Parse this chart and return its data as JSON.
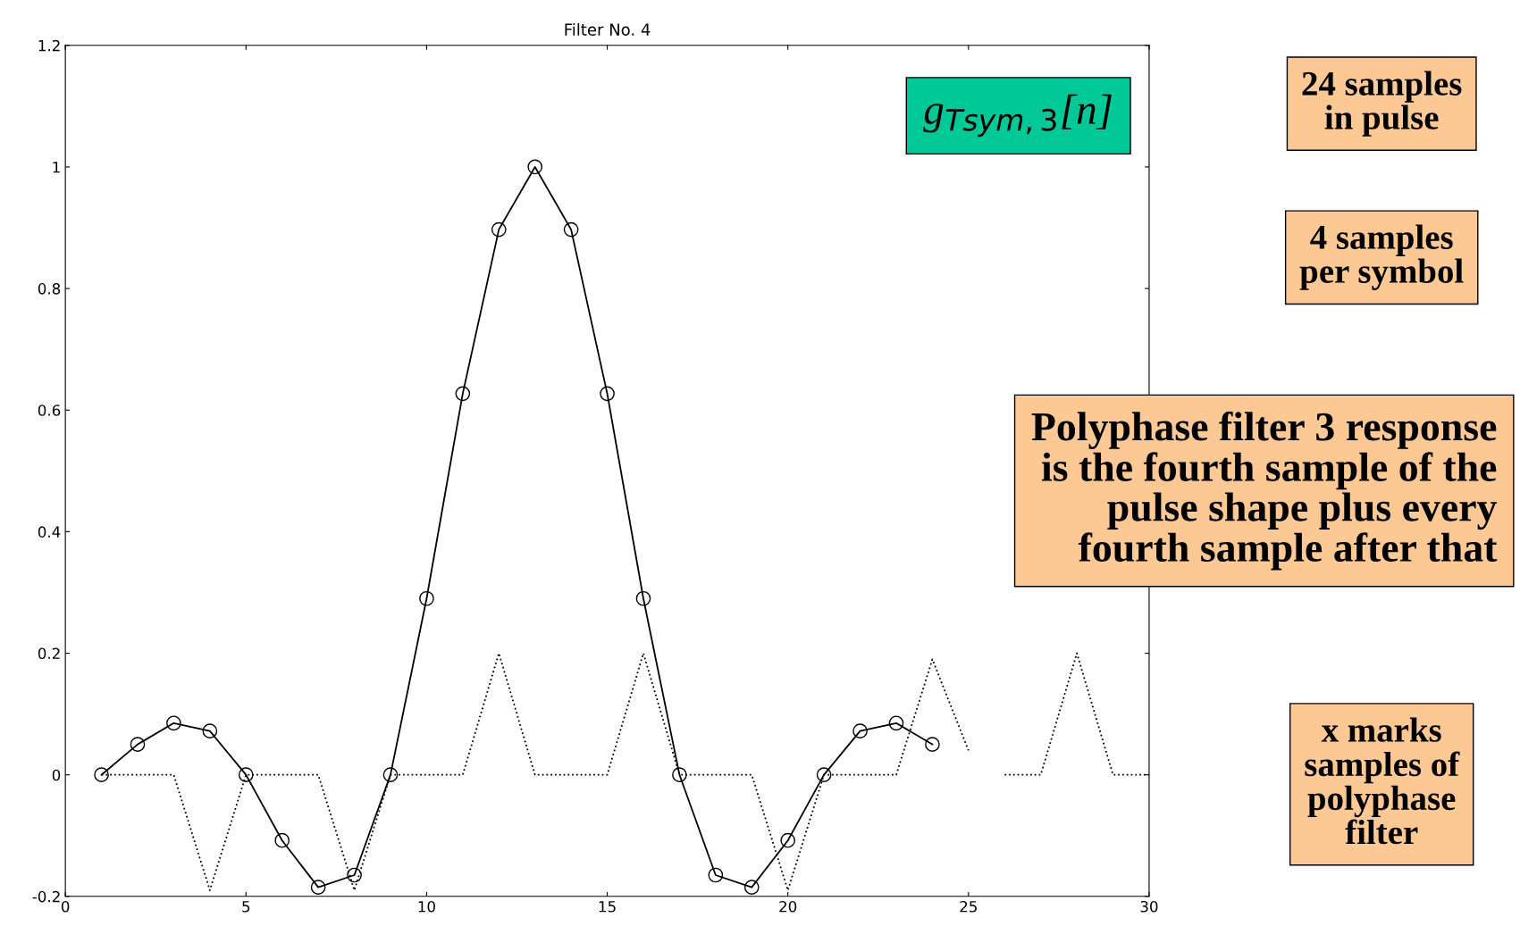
{
  "chart_data": {
    "type": "line",
    "title": "Filter No. 4",
    "xlim": [
      0,
      30
    ],
    "ylim": [
      -0.2,
      1.2
    ],
    "xticks": [
      0,
      5,
      10,
      15,
      20,
      25,
      30
    ],
    "yticks": [
      -0.2,
      0,
      0.2,
      0.4,
      0.6,
      0.8,
      1,
      1.2
    ],
    "grid": false,
    "legend": false,
    "series": [
      {
        "color": "#000000",
        "marker": "circle",
        "line_style": "solid",
        "x": [
          1,
          2,
          3,
          4,
          5,
          6,
          7,
          8,
          9,
          10,
          11,
          12,
          13,
          14,
          15,
          16,
          17,
          18,
          19,
          20,
          21,
          22,
          23,
          24
        ],
        "values": [
          0,
          0.05,
          0.085,
          0.072,
          0,
          -0.108,
          -0.185,
          -0.165,
          0,
          0.29,
          0.627,
          0.897,
          1,
          0.897,
          0.627,
          0.29,
          0,
          -0.165,
          -0.185,
          -0.108,
          0,
          0.072,
          0.085,
          0.05
        ]
      },
      {
        "color": "#000000",
        "marker": "none",
        "line_style": "dotted",
        "x": [
          1,
          2,
          3,
          4,
          5,
          6,
          7,
          8,
          9,
          10,
          11,
          12,
          13,
          14,
          15,
          16,
          17,
          18,
          19,
          20,
          21,
          22,
          23,
          24,
          25,
          25.5,
          26,
          27,
          28,
          29,
          30
        ],
        "values": [
          0,
          0,
          0,
          -0.19,
          0,
          0,
          0,
          -0.19,
          0,
          0,
          0,
          0.2,
          0,
          0,
          0,
          0.2,
          0,
          0,
          0,
          -0.19,
          0,
          0,
          0,
          0.19,
          0.04,
          null,
          0,
          0,
          0.2,
          0,
          0
        ]
      }
    ],
    "annotations": [
      "g$_{Tsym,3}$[n]",
      "24 samples\nin pulse",
      "4 samples\nper symbol",
      "Polyphase filter 3 response\nis the fourth sample of the\npulse shape plus every\nfourth sample after that",
      "x marks\nsamples of\npolyphase\nfilter"
    ]
  }
}
